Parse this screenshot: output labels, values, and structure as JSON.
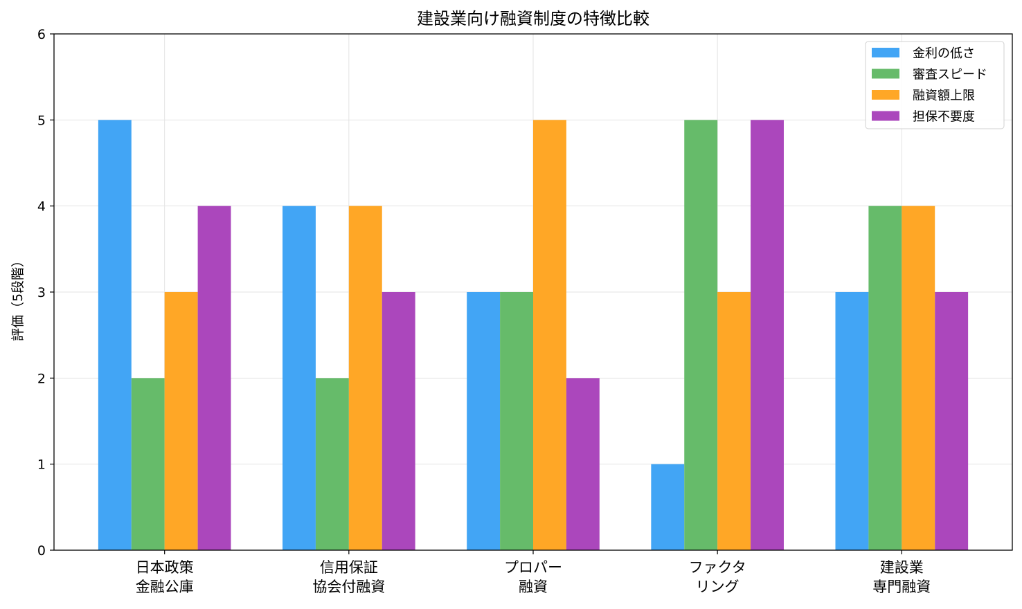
{
  "chart_data": {
    "type": "bar",
    "title": "建設業向け融資制度の特徴比較",
    "xlabel": "",
    "ylabel": "評価（5段階）",
    "ylim": [
      0,
      6
    ],
    "yticks": [
      "0",
      "1",
      "2",
      "3",
      "4",
      "5",
      "6"
    ],
    "grid": true,
    "legend_position": "top-right",
    "categories": [
      [
        "日本政策",
        "金融公庫"
      ],
      [
        "信用保証",
        "協会付融資"
      ],
      [
        "プロパー",
        "融資"
      ],
      [
        "ファクタ",
        "リング"
      ],
      [
        "建設業",
        "専門融資"
      ]
    ],
    "series": [
      {
        "name": "金利の低さ",
        "color": "#42A5F5",
        "values": [
          5,
          4,
          3,
          1,
          3
        ]
      },
      {
        "name": "審査スピード",
        "color": "#66BB6A",
        "values": [
          2,
          2,
          3,
          5,
          4
        ]
      },
      {
        "name": "融資額上限",
        "color": "#FFA726",
        "values": [
          3,
          4,
          5,
          3,
          4
        ]
      },
      {
        "name": "担保不要度",
        "color": "#AB47BC",
        "values": [
          4,
          3,
          2,
          5,
          3
        ]
      }
    ]
  }
}
